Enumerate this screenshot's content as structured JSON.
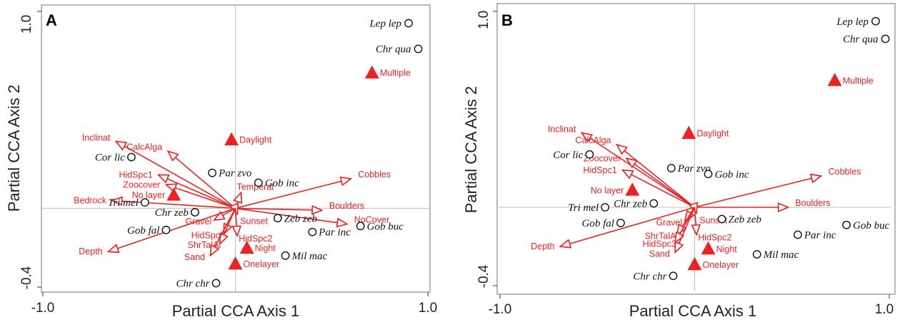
{
  "figure": {
    "colors": {
      "vector": "#ee2222",
      "species": "#111111",
      "frame": "#8a8a8a",
      "zero_line": "#bdbdbd"
    },
    "icons": {
      "species_marker": "open-circle",
      "factor_marker": "filled-triangle",
      "vector": "open-arrowhead"
    }
  },
  "chart_data": [
    {
      "type": "scatter",
      "panel_label": "A",
      "xlabel": "Partial CCA Axis 1",
      "ylabel": "Partial CCA Axis 2",
      "xlim": [
        -1.0,
        1.0
      ],
      "ylim": [
        -0.4,
        1.0
      ],
      "xticks": [
        "-1.0",
        "1.0"
      ],
      "yticks": [
        "1.0",
        "-0.4"
      ],
      "grid": false,
      "zero_lines": true,
      "species": [
        {
          "label": "Lep lep",
          "x": 0.9,
          "y": 0.94
        },
        {
          "label": "Chr qua",
          "x": 0.95,
          "y": 0.81
        },
        {
          "label": "Cor lic",
          "x": -0.54,
          "y": 0.26
        },
        {
          "label": "Par zvo",
          "x": -0.12,
          "y": 0.18
        },
        {
          "label": "Gob inc",
          "x": 0.12,
          "y": 0.13
        },
        {
          "label": "Tri mel",
          "x": -0.47,
          "y": 0.03
        },
        {
          "label": "Chr zeb",
          "x": -0.21,
          "y": -0.02
        },
        {
          "label": "Zeb zeb",
          "x": 0.22,
          "y": -0.05
        },
        {
          "label": "Gob fal",
          "x": -0.36,
          "y": -0.11
        },
        {
          "label": "Gob buc",
          "x": 0.65,
          "y": -0.09
        },
        {
          "label": "Par inc",
          "x": 0.4,
          "y": -0.12
        },
        {
          "label": "Mil mac",
          "x": 0.26,
          "y": -0.24
        },
        {
          "label": "Chr chr",
          "x": -0.1,
          "y": -0.38
        }
      ],
      "factors": [
        {
          "label": "Multiple",
          "x": 0.71,
          "y": 0.69
        },
        {
          "label": "Daylight",
          "x": -0.02,
          "y": 0.35
        },
        {
          "label": "No layer",
          "x": -0.32,
          "y": 0.07
        },
        {
          "label": "Night",
          "x": 0.06,
          "y": -0.2
        },
        {
          "label": "Onelayer",
          "x": 0.0,
          "y": -0.28
        }
      ],
      "vectors": [
        {
          "label": "Inclinat",
          "x": -0.62,
          "y": 0.34
        },
        {
          "label": "CalcAlga",
          "x": -0.35,
          "y": 0.29
        },
        {
          "label": "HidSpc1",
          "x": -0.4,
          "y": 0.17
        },
        {
          "label": "Zoocover",
          "x": -0.36,
          "y": 0.12
        },
        {
          "label": "Bedrock",
          "x": -0.64,
          "y": 0.04
        },
        {
          "label": "Temperat",
          "x": 0.03,
          "y": 0.08
        },
        {
          "label": "Cobbles",
          "x": 0.6,
          "y": 0.15
        },
        {
          "label": "Boulders",
          "x": 0.45,
          "y": -0.01
        },
        {
          "label": "NoCover",
          "x": 0.58,
          "y": -0.08
        },
        {
          "label": "Sunset",
          "x": 0.01,
          "y": -0.03
        },
        {
          "label": "Gravel",
          "x": -0.11,
          "y": -0.06
        },
        {
          "label": "HidSpc2",
          "x": 0.01,
          "y": -0.14
        },
        {
          "label": "HidSpc3",
          "x": -0.06,
          "y": -0.13
        },
        {
          "label": "ShrTalAl",
          "x": -0.08,
          "y": -0.18
        },
        {
          "label": "Sand",
          "x": -0.13,
          "y": -0.24
        },
        {
          "label": "Depth",
          "x": -0.66,
          "y": -0.22
        }
      ]
    },
    {
      "type": "scatter",
      "panel_label": "B",
      "xlabel": "Partial CCA Axis 1",
      "ylabel": "Partial CCA Axis 2",
      "xlim": [
        -1.0,
        1.0
      ],
      "ylim": [
        -0.4,
        1.0
      ],
      "xticks": [
        "-1.0",
        "1.0"
      ],
      "yticks": [
        "1.0",
        "-0.4"
      ],
      "grid": false,
      "zero_lines": true,
      "species": [
        {
          "label": "Lep lep",
          "x": 0.93,
          "y": 0.95
        },
        {
          "label": "Chr qua",
          "x": 0.98,
          "y": 0.86
        },
        {
          "label": "Cor lic",
          "x": -0.54,
          "y": 0.27
        },
        {
          "label": "Par zvo",
          "x": -0.12,
          "y": 0.2
        },
        {
          "label": "Gob inc",
          "x": 0.07,
          "y": 0.17
        },
        {
          "label": "Tri mel",
          "x": -0.46,
          "y": 0.0
        },
        {
          "label": "Chr zeb",
          "x": -0.21,
          "y": 0.02
        },
        {
          "label": "Zeb zeb",
          "x": 0.14,
          "y": -0.06
        },
        {
          "label": "Gob fal",
          "x": -0.38,
          "y": -0.08
        },
        {
          "label": "Gob buc",
          "x": 0.78,
          "y": -0.09
        },
        {
          "label": "Par inc",
          "x": 0.53,
          "y": -0.14
        },
        {
          "label": "Mil mac",
          "x": 0.32,
          "y": -0.24
        },
        {
          "label": "Chr chr",
          "x": -0.11,
          "y": -0.35
        }
      ],
      "factors": [
        {
          "label": "Multiple",
          "x": 0.72,
          "y": 0.65
        },
        {
          "label": "Daylight",
          "x": -0.03,
          "y": 0.38
        },
        {
          "label": "No layer",
          "x": -0.32,
          "y": 0.09
        },
        {
          "label": "Night",
          "x": 0.07,
          "y": -0.21
        },
        {
          "label": "Onelayer",
          "x": 0.0,
          "y": -0.29
        }
      ],
      "vectors": [
        {
          "label": "Inclinat",
          "x": -0.58,
          "y": 0.38
        },
        {
          "label": "CalcAlga",
          "x": -0.4,
          "y": 0.32
        },
        {
          "label": "HidSpc1",
          "x": -0.37,
          "y": 0.19
        },
        {
          "label": "Zoocover",
          "x": -0.35,
          "y": 0.25
        },
        {
          "label": "Cobbles",
          "x": 0.65,
          "y": 0.16
        },
        {
          "label": "Boulders",
          "x": 0.48,
          "y": 0.0
        },
        {
          "label": "Sunset",
          "x": 0.01,
          "y": -0.03
        },
        {
          "label": "Gravel",
          "x": -0.05,
          "y": -0.07
        },
        {
          "label": "HidSpc2",
          "x": 0.01,
          "y": -0.14
        },
        {
          "label": "ShrTalAl",
          "x": -0.09,
          "y": -0.14
        },
        {
          "label": "HidSpc3",
          "x": -0.1,
          "y": -0.18
        },
        {
          "label": "Sand",
          "x": -0.1,
          "y": -0.23
        },
        {
          "label": "Depth",
          "x": -0.69,
          "y": -0.2
        }
      ]
    }
  ]
}
